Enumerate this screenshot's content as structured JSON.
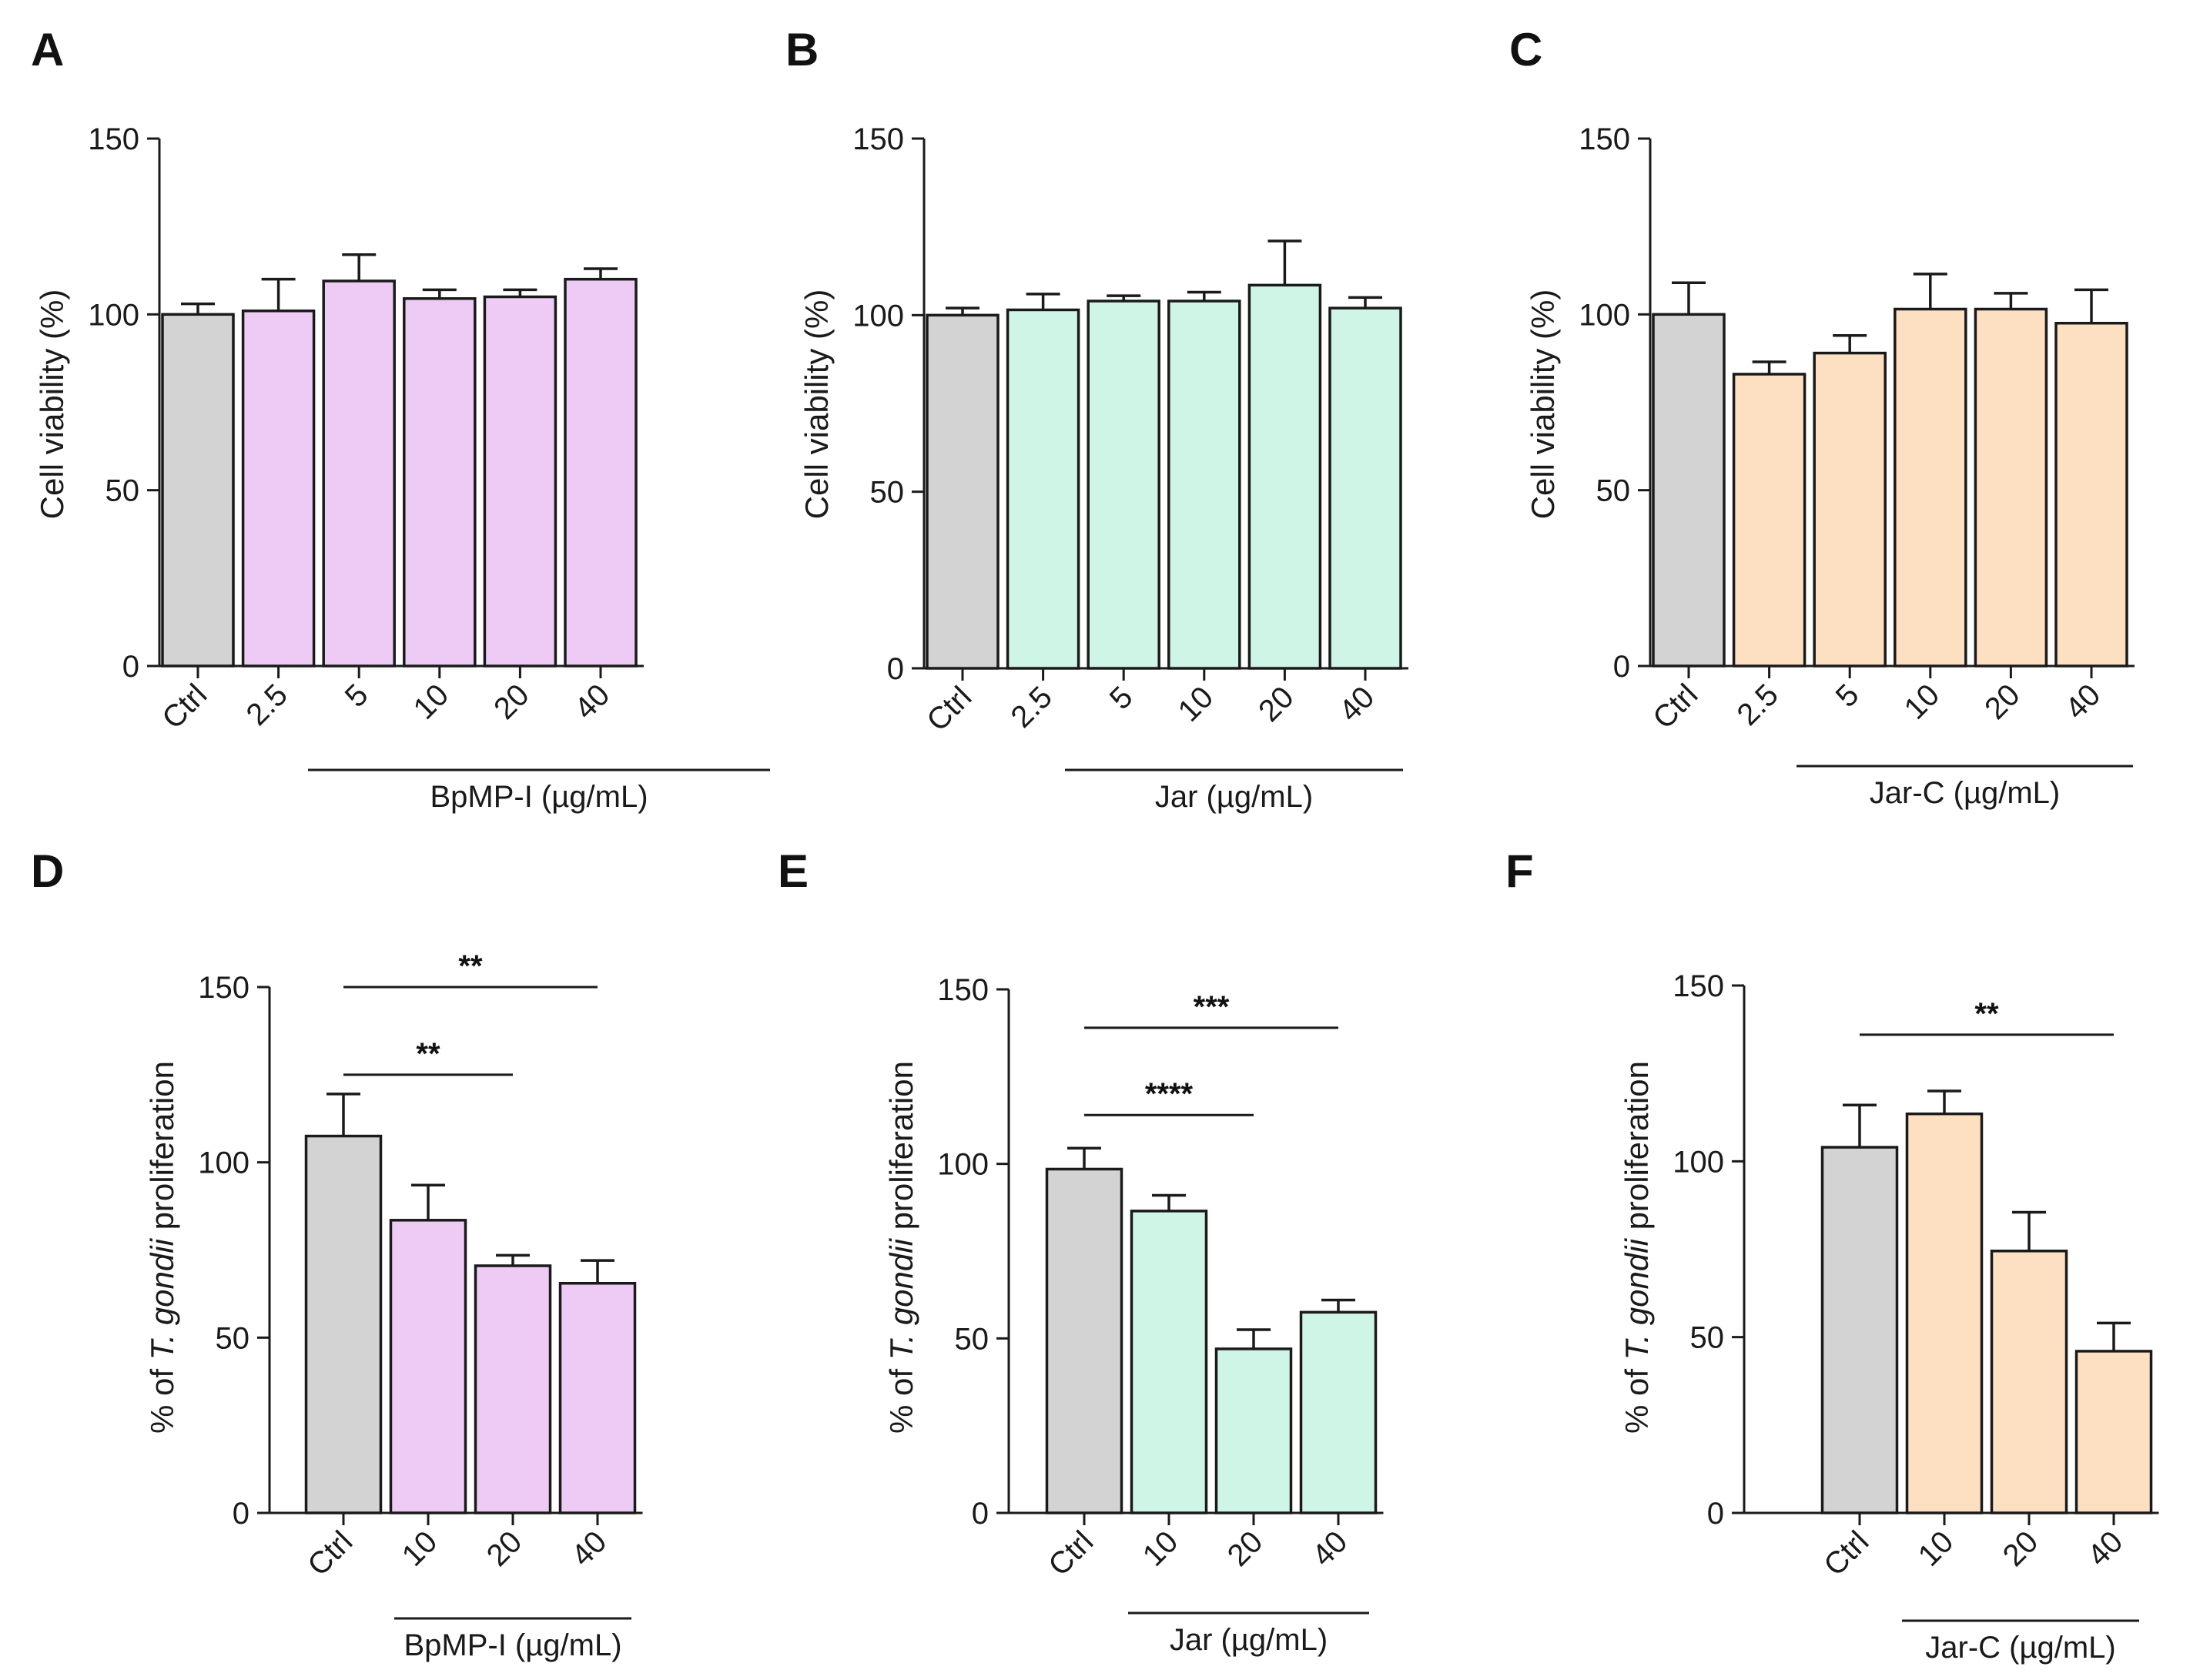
{
  "colors": {
    "control": "#d3d3d3",
    "bpmp": "#edcbf5",
    "jar": "#cef5e5",
    "jarc": "#fde0c1",
    "ink": "#1a1a1a"
  },
  "chart_data": [
    {
      "panel": "A",
      "type": "bar",
      "ylabel": "Cell viability (%)",
      "group_label": "BpMP-I (µg/mL)",
      "categories": [
        "Ctrl",
        "2.5",
        "5",
        "10",
        "20",
        "40"
      ],
      "values": [
        100,
        101,
        109.5,
        104.5,
        105,
        110
      ],
      "errors": [
        3,
        9,
        7.5,
        2.5,
        2,
        3
      ],
      "yticks": [
        "0",
        "50",
        "100",
        "150"
      ],
      "ylim": [
        0,
        150
      ],
      "colors": [
        "control",
        "bpmp",
        "bpmp",
        "bpmp",
        "bpmp",
        "bpmp"
      ],
      "significance": []
    },
    {
      "panel": "B",
      "type": "bar",
      "ylabel": "Cell viability (%)",
      "group_label": "Jar (µg/mL)",
      "categories": [
        "Ctrl",
        "2.5",
        "5",
        "10",
        "20",
        "40"
      ],
      "values": [
        100,
        101.5,
        104,
        104,
        108.5,
        102
      ],
      "errors": [
        2,
        4.5,
        1.5,
        2.5,
        12.5,
        3
      ],
      "yticks": [
        "0",
        "50",
        "100",
        "150"
      ],
      "ylim": [
        0,
        150
      ],
      "colors": [
        "control",
        "jar",
        "jar",
        "jar",
        "jar",
        "jar"
      ],
      "significance": []
    },
    {
      "panel": "C",
      "type": "bar",
      "ylabel": "Cell viability (%)",
      "group_label": "Jar-C (µg/mL)",
      "categories": [
        "Ctrl",
        "2.5",
        "5",
        "10",
        "20",
        "40"
      ],
      "values": [
        100,
        83,
        89,
        101.5,
        101.5,
        97.5
      ],
      "errors": [
        9,
        3.5,
        5,
        10,
        4.5,
        9.5
      ],
      "yticks": [
        "0",
        "50",
        "100",
        "150"
      ],
      "ylim": [
        0,
        150
      ],
      "colors": [
        "control",
        "jarc",
        "jarc",
        "jarc",
        "jarc",
        "jarc"
      ],
      "significance": []
    },
    {
      "panel": "D",
      "type": "bar",
      "ylabel_parts": [
        "% of ",
        "T. gondii",
        " proliferation"
      ],
      "group_label": "BpMP-I (µg/mL)",
      "categories": [
        "Ctrl",
        "10",
        "20",
        "40"
      ],
      "values": [
        107.5,
        83.5,
        70.5,
        65.5
      ],
      "errors": [
        12,
        10,
        3,
        6.5
      ],
      "yticks": [
        "0",
        "50",
        "100",
        "150"
      ],
      "ylim": [
        0,
        150
      ],
      "colors": [
        "control",
        "bpmp",
        "bpmp",
        "bpmp"
      ],
      "significance": [
        {
          "from": 0,
          "to": 3,
          "label": "**",
          "level": 150
        },
        {
          "from": 0,
          "to": 2,
          "label": "**",
          "level": 125
        }
      ]
    },
    {
      "panel": "E",
      "type": "bar",
      "ylabel_parts": [
        "% of ",
        "T. gondii",
        " proliferation"
      ],
      "group_label": "Jar (µg/mL)",
      "categories": [
        "Ctrl",
        "10",
        "20",
        "40"
      ],
      "values": [
        98.5,
        86.5,
        47,
        57.5
      ],
      "errors": [
        6,
        4.5,
        5.5,
        3.5
      ],
      "yticks": [
        "0",
        "50",
        "100",
        "150"
      ],
      "ylim": [
        0,
        150
      ],
      "colors": [
        "control",
        "jar",
        "jar",
        "jar"
      ],
      "significance": [
        {
          "from": 0,
          "to": 3,
          "label": "***",
          "level": 139
        },
        {
          "from": 0,
          "to": 2,
          "label": "****",
          "level": 114
        }
      ]
    },
    {
      "panel": "F",
      "type": "bar",
      "ylabel_parts": [
        "% of ",
        "T. gondii",
        " proliferation"
      ],
      "group_label": "Jar-C (µg/mL)",
      "categories": [
        "Ctrl",
        "10",
        "20",
        "40"
      ],
      "values": [
        104,
        113.5,
        74.5,
        46
      ],
      "errors": [
        12,
        6.5,
        11,
        8
      ],
      "yticks": [
        "0",
        "50",
        "100",
        "150"
      ],
      "ylim": [
        0,
        150
      ],
      "colors": [
        "control",
        "jarc",
        "jarc",
        "jarc"
      ],
      "significance": [
        {
          "from": 0,
          "to": 3,
          "label": "**",
          "level": 136
        }
      ]
    }
  ]
}
